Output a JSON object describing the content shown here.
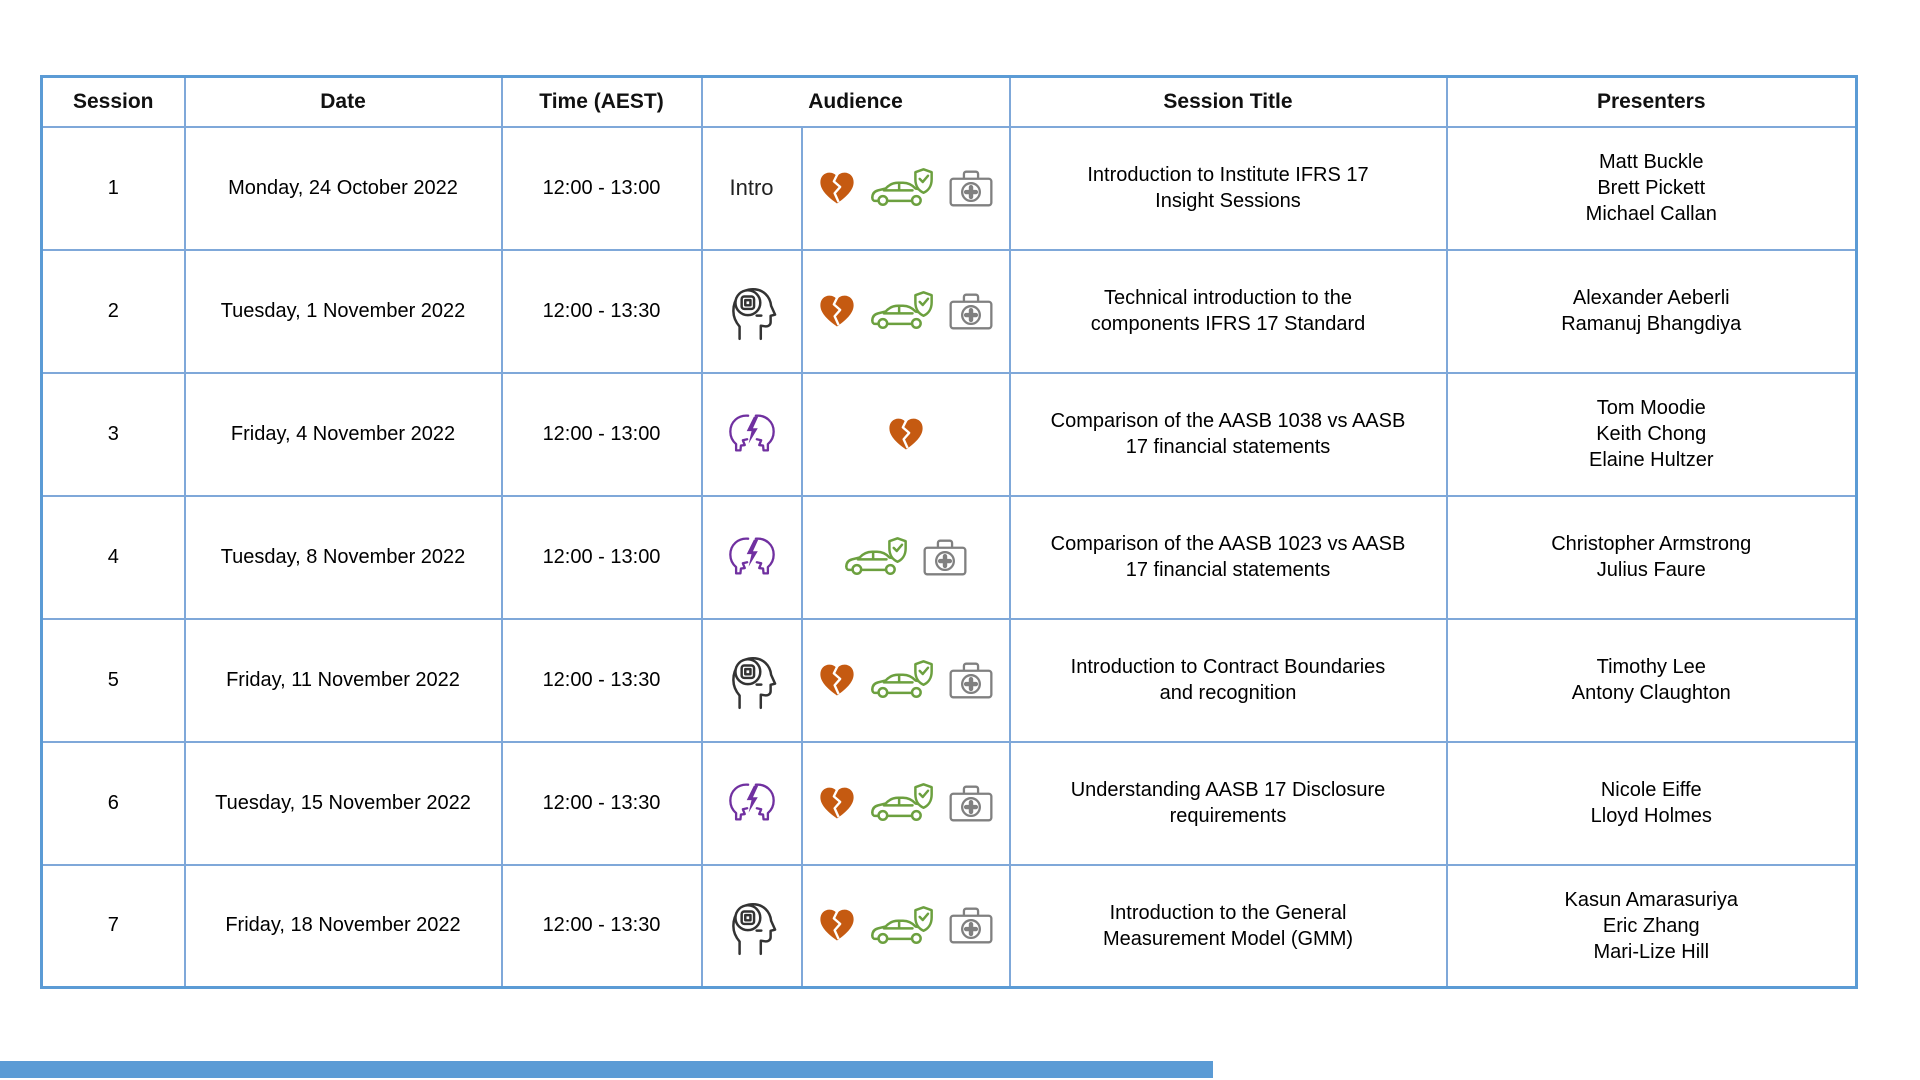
{
  "colors": {
    "table_inner_border": "#7FA8D9",
    "table_outer_border": "#5B9BD5",
    "broken_heart_orange": "#C55A11",
    "car_shield_green": "#6CA03F",
    "heads_purple": "#7030A0",
    "first_aid_gray": "#808080",
    "head_chip_dark": "#333333",
    "bottom_bar_blue": "#5B9BD5"
  },
  "table": {
    "columns": [
      "Session",
      "Date",
      "Time (AEST)",
      "Audience",
      "Session Title",
      "Presenters"
    ],
    "rows": [
      {
        "session": "1",
        "date": "Monday, 24 October 2022",
        "time": "12:00 - 13:00",
        "audience_label": "Intro",
        "audience_type_icons": [],
        "audience_product_icons": [
          "broken-heart",
          "car-shield",
          "first-aid-kit"
        ],
        "title": "Introduction to Institute IFRS 17\nInsight Sessions",
        "presenters": "Matt Buckle\nBrett Pickett\nMichael Callan"
      },
      {
        "session": "2",
        "date": "Tuesday, 1 November 2022",
        "time": "12:00 - 13:30",
        "audience_type_icons": [
          "head-chip"
        ],
        "audience_product_icons": [
          "broken-heart",
          "car-shield",
          "first-aid-kit"
        ],
        "title": "Technical introduction to the\ncomponents IFRS 17 Standard",
        "presenters": "Alexander Aeberli\nRamanuj Bhangdiya"
      },
      {
        "session": "3",
        "date": "Friday, 4 November 2022",
        "time": "12:00 - 13:00",
        "audience_type_icons": [
          "heads-lightning"
        ],
        "audience_product_icons": [
          "broken-heart"
        ],
        "title": "Comparison of the AASB 1038 vs AASB\n17 financial statements",
        "presenters": "Tom Moodie\nKeith Chong\nElaine Hultzer"
      },
      {
        "session": "4",
        "date": "Tuesday, 8 November 2022",
        "time": "12:00 - 13:00",
        "audience_type_icons": [
          "heads-lightning"
        ],
        "audience_product_icons": [
          "car-shield",
          "first-aid-kit"
        ],
        "title": "Comparison of the AASB 1023 vs AASB\n17 financial statements",
        "presenters": "Christopher Armstrong\nJulius Faure"
      },
      {
        "session": "5",
        "date": "Friday, 11 November 2022",
        "time": "12:00 - 13:30",
        "audience_type_icons": [
          "head-chip"
        ],
        "audience_product_icons": [
          "broken-heart",
          "car-shield",
          "first-aid-kit"
        ],
        "title": "Introduction to Contract Boundaries\nand recognition",
        "presenters": "Timothy Lee\nAntony Claughton"
      },
      {
        "session": "6",
        "date": "Tuesday, 15 November 2022",
        "time": "12:00 - 13:30",
        "audience_type_icons": [
          "heads-lightning"
        ],
        "audience_product_icons": [
          "broken-heart",
          "car-shield",
          "first-aid-kit"
        ],
        "title": "Understanding AASB 17 Disclosure\nrequirements",
        "presenters": "Nicole Eiffe\nLloyd Holmes"
      },
      {
        "session": "7",
        "date": "Friday, 18 November 2022",
        "time": "12:00 - 13:30",
        "audience_type_icons": [
          "head-chip"
        ],
        "audience_product_icons": [
          "broken-heart",
          "car-shield",
          "first-aid-kit"
        ],
        "title": "Introduction to the General\nMeasurement Model (GMM)",
        "presenters": "Kasun Amarasuriya\nEric Zhang\nMari-Lize Hill"
      }
    ]
  }
}
